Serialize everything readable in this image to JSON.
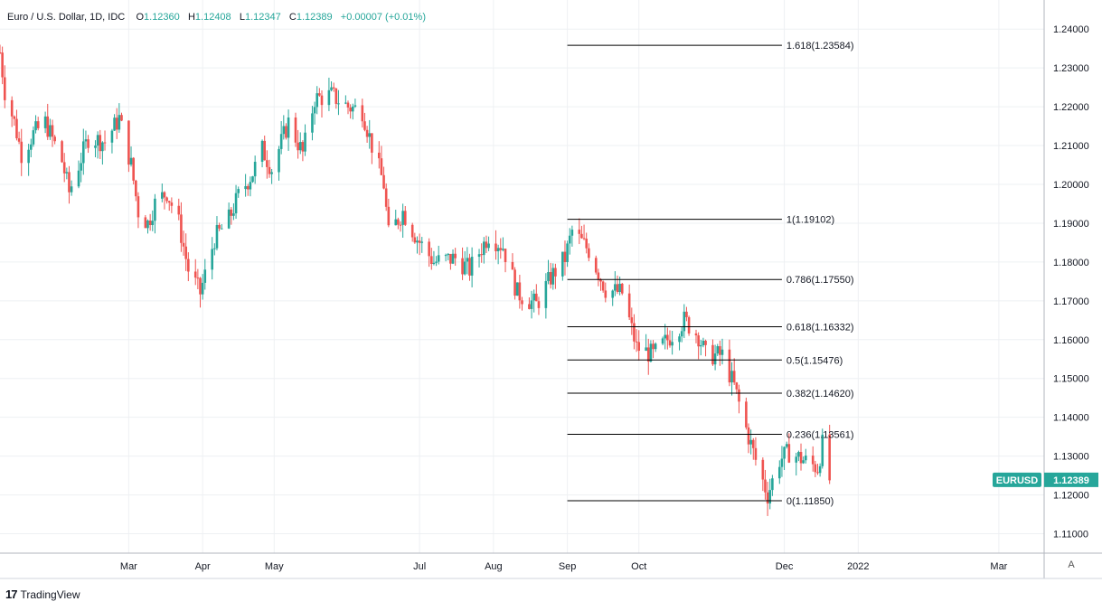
{
  "header": {
    "symbol": "Euro / U.S. Dollar, 1D, IDC",
    "o_label": "O",
    "o_value": "1.12360",
    "h_label": "H",
    "h_value": "1.12408",
    "l_label": "L",
    "l_value": "1.12347",
    "c_label": "C",
    "c_value": "1.12389",
    "change": "+0.00007 (+0.01%)"
  },
  "price_badge": {
    "symbol": "EURUSD",
    "price": "1.12389"
  },
  "branding": {
    "logo_text": "TradingView",
    "logo_mark": "17"
  },
  "auto_button": "A",
  "colors": {
    "up": "#26a69a",
    "down": "#ef5350",
    "grid": "#eef0f3",
    "fib": "#000000",
    "badge": "#26a69a"
  },
  "chart_data": {
    "type": "candlestick",
    "ylim": [
      1.105,
      1.2475
    ],
    "yticks": [
      "1.11000",
      "1.12000",
      "1.13000",
      "1.14000",
      "1.15000",
      "1.16000",
      "1.17000",
      "1.18000",
      "1.19000",
      "1.20000",
      "1.21000",
      "1.22000",
      "1.23000",
      "1.24000"
    ],
    "xticks": [
      {
        "label": "Mar",
        "date": "2021-03-01"
      },
      {
        "label": "Apr",
        "date": "2021-04-01"
      },
      {
        "label": "May",
        "date": "2021-05-01"
      },
      {
        "label": "Jul",
        "date": "2021-07-01"
      },
      {
        "label": "Aug",
        "date": "2021-08-01"
      },
      {
        "label": "Sep",
        "date": "2021-09-01"
      },
      {
        "label": "Oct",
        "date": "2021-10-01"
      },
      {
        "label": "Dec",
        "date": "2021-12-01"
      },
      {
        "label": "2022",
        "date": "2022-01-01"
      },
      {
        "label": "Mar",
        "date": "2022-03-01"
      }
    ],
    "xlim": [
      "2021-01-06",
      "2022-03-20"
    ],
    "fibonacci": {
      "start_date": "2021-09-01",
      "end_date": "2021-11-30",
      "levels": [
        {
          "ratio": "1.618",
          "value": 1.23584,
          "label": "1.618(1.23584)"
        },
        {
          "ratio": "1",
          "value": 1.19102,
          "label": "1(1.19102)"
        },
        {
          "ratio": "0.786",
          "value": 1.1755,
          "label": "0.786(1.17550)"
        },
        {
          "ratio": "0.618",
          "value": 1.16332,
          "label": "0.618(1.16332)"
        },
        {
          "ratio": "0.5",
          "value": 1.15476,
          "label": "0.5(1.15476)"
        },
        {
          "ratio": "0.382",
          "value": 1.1462,
          "label": "0.382(1.14620)"
        },
        {
          "ratio": "0.236",
          "value": 1.13561,
          "label": "0.236(1.13561)"
        },
        {
          "ratio": "0",
          "value": 1.1185,
          "label": "0(1.11850)"
        }
      ]
    },
    "price_path": [
      [
        "2021-01-06",
        1.234
      ],
      [
        "2021-01-08",
        1.224
      ],
      [
        "2021-01-12",
        1.216
      ],
      [
        "2021-01-15",
        1.208
      ],
      [
        "2021-01-20",
        1.213
      ],
      [
        "2021-01-25",
        1.216
      ],
      [
        "2021-02-01",
        1.206
      ],
      [
        "2021-02-04",
        1.198
      ],
      [
        "2021-02-08",
        1.205
      ],
      [
        "2021-02-12",
        1.212
      ],
      [
        "2021-02-19",
        1.211
      ],
      [
        "2021-02-25",
        1.217
      ],
      [
        "2021-03-02",
        1.205
      ],
      [
        "2021-03-05",
        1.193
      ],
      [
        "2021-03-09",
        1.19
      ],
      [
        "2021-03-12",
        1.195
      ],
      [
        "2021-03-17",
        1.198
      ],
      [
        "2021-03-22",
        1.19
      ],
      [
        "2021-03-26",
        1.178
      ],
      [
        "2021-03-31",
        1.172
      ],
      [
        "2021-04-06",
        1.186
      ],
      [
        "2021-04-12",
        1.191
      ],
      [
        "2021-04-16",
        1.197
      ],
      [
        "2021-04-22",
        1.203
      ],
      [
        "2021-04-26",
        1.209
      ],
      [
        "2021-04-30",
        1.204
      ],
      [
        "2021-05-07",
        1.216
      ],
      [
        "2021-05-13",
        1.208
      ],
      [
        "2021-05-18",
        1.222
      ],
      [
        "2021-05-25",
        1.223
      ],
      [
        "2021-06-01",
        1.22
      ],
      [
        "2021-06-07",
        1.219
      ],
      [
        "2021-06-11",
        1.21
      ],
      [
        "2021-06-16",
        1.2
      ],
      [
        "2021-06-18",
        1.187
      ],
      [
        "2021-06-24",
        1.193
      ],
      [
        "2021-06-30",
        1.186
      ],
      [
        "2021-07-07",
        1.18
      ],
      [
        "2021-07-16",
        1.181
      ],
      [
        "2021-07-22",
        1.178
      ],
      [
        "2021-07-30",
        1.187
      ],
      [
        "2021-08-05",
        1.184
      ],
      [
        "2021-08-11",
        1.172
      ],
      [
        "2021-08-19",
        1.169
      ],
      [
        "2021-08-25",
        1.176
      ],
      [
        "2021-08-31",
        1.181
      ],
      [
        "2021-09-03",
        1.188
      ],
      [
        "2021-09-10",
        1.183
      ],
      [
        "2021-09-17",
        1.173
      ],
      [
        "2021-09-24",
        1.172
      ],
      [
        "2021-09-30",
        1.158
      ],
      [
        "2021-10-07",
        1.156
      ],
      [
        "2021-10-13",
        1.16
      ],
      [
        "2021-10-20",
        1.165
      ],
      [
        "2021-10-26",
        1.161
      ],
      [
        "2021-10-29",
        1.156
      ],
      [
        "2021-11-05",
        1.156
      ],
      [
        "2021-11-10",
        1.148
      ],
      [
        "2021-11-15",
        1.137
      ],
      [
        "2021-11-19",
        1.129
      ],
      [
        "2021-11-24",
        1.12
      ],
      [
        "2021-11-29",
        1.129
      ],
      [
        "2021-12-03",
        1.131
      ],
      [
        "2021-12-09",
        1.129
      ],
      [
        "2021-12-15",
        1.127
      ],
      [
        "2021-12-17",
        1.133
      ],
      [
        "2021-12-20",
        1.1239
      ]
    ]
  }
}
